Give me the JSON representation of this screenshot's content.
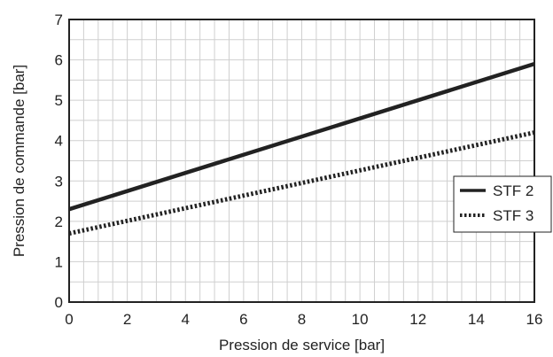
{
  "chart_data": {
    "type": "line",
    "title": "",
    "xlabel": "Pression de service [bar]",
    "ylabel": "Pression de commande [bar]",
    "xlim": [
      0,
      16
    ],
    "ylim": [
      0,
      7
    ],
    "xticks": [
      0,
      2,
      4,
      6,
      8,
      10,
      12,
      14,
      16
    ],
    "yticks": [
      0,
      1,
      2,
      3,
      4,
      5,
      6,
      7
    ],
    "grid": true,
    "legend_position": "right",
    "series": [
      {
        "name": "STF 2",
        "style": "solid",
        "color": "#222222",
        "x": [
          0,
          16
        ],
        "y": [
          2.3,
          5.9
        ]
      },
      {
        "name": "STF 3",
        "style": "dotted",
        "color": "#222222",
        "x": [
          0,
          16
        ],
        "y": [
          1.7,
          4.2
        ]
      }
    ]
  }
}
